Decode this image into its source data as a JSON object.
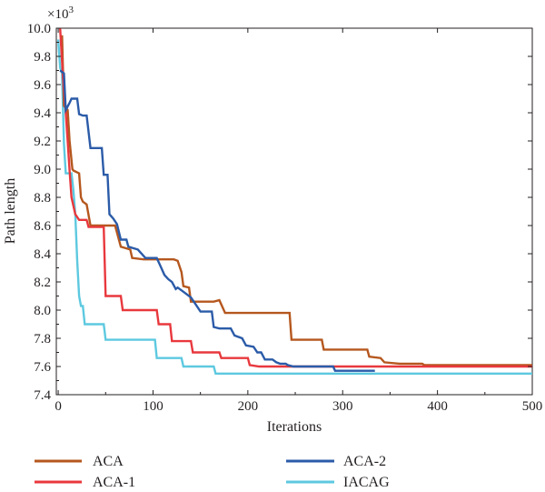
{
  "chart_data": {
    "type": "line",
    "xlabel": "Iterations",
    "ylabel": "Path length",
    "y_multiplier": "×10",
    "y_multiplier_exp": "3",
    "xlim": [
      -2,
      500
    ],
    "ylim": [
      7.4,
      10.0
    ],
    "xticks": [
      "0",
      "100",
      "200",
      "300",
      "400",
      "500"
    ],
    "yticks": [
      "7.4",
      "7.6",
      "7.8",
      "8.0",
      "8.2",
      "8.4",
      "8.6",
      "8.8",
      "9.0",
      "9.2",
      "9.4",
      "9.6",
      "9.8",
      "10.0"
    ],
    "xtick_values": [
      0,
      100,
      200,
      300,
      400,
      500
    ],
    "ytick_values": [
      7.4,
      7.6,
      7.8,
      8.0,
      8.2,
      8.4,
      8.6,
      8.8,
      9.0,
      9.2,
      9.4,
      9.6,
      9.8,
      10.0
    ],
    "legend_position": "bottom",
    "series": [
      {
        "name": "ACA",
        "color": "#b5571e",
        "points": [
          [
            4,
            9.95
          ],
          [
            6,
            9.45
          ],
          [
            10,
            9.42
          ],
          [
            12,
            9.2
          ],
          [
            15,
            9.0
          ],
          [
            16,
            8.99
          ],
          [
            22,
            8.97
          ],
          [
            24,
            8.8
          ],
          [
            26,
            8.77
          ],
          [
            30,
            8.75
          ],
          [
            34,
            8.6
          ],
          [
            60,
            8.6
          ],
          [
            66,
            8.45
          ],
          [
            76,
            8.43
          ],
          [
            78,
            8.37
          ],
          [
            90,
            8.36
          ],
          [
            122,
            8.36
          ],
          [
            126,
            8.35
          ],
          [
            130,
            8.27
          ],
          [
            132,
            8.17
          ],
          [
            138,
            8.16
          ],
          [
            140,
            8.06
          ],
          [
            164,
            8.06
          ],
          [
            170,
            8.07
          ],
          [
            176,
            7.98
          ],
          [
            244,
            7.98
          ],
          [
            246,
            7.79
          ],
          [
            278,
            7.79
          ],
          [
            280,
            7.72
          ],
          [
            326,
            7.72
          ],
          [
            328,
            7.67
          ],
          [
            340,
            7.66
          ],
          [
            344,
            7.63
          ],
          [
            360,
            7.62
          ],
          [
            384,
            7.62
          ],
          [
            386,
            7.61
          ],
          [
            500,
            7.61
          ]
        ]
      },
      {
        "name": "ACA-1",
        "color": "#e8383d",
        "points": [
          [
            2,
            10.0
          ],
          [
            5,
            9.65
          ],
          [
            8,
            9.4
          ],
          [
            10,
            9.2
          ],
          [
            12,
            8.99
          ],
          [
            14,
            8.8
          ],
          [
            18,
            8.68
          ],
          [
            22,
            8.64
          ],
          [
            30,
            8.64
          ],
          [
            32,
            8.59
          ],
          [
            48,
            8.59
          ],
          [
            50,
            8.1
          ],
          [
            66,
            8.1
          ],
          [
            68,
            8.0
          ],
          [
            104,
            8.0
          ],
          [
            106,
            7.9
          ],
          [
            118,
            7.9
          ],
          [
            120,
            7.78
          ],
          [
            140,
            7.78
          ],
          [
            142,
            7.7
          ],
          [
            170,
            7.7
          ],
          [
            172,
            7.66
          ],
          [
            200,
            7.66
          ],
          [
            202,
            7.61
          ],
          [
            212,
            7.6
          ],
          [
            500,
            7.6
          ]
        ]
      },
      {
        "name": "ACA-2",
        "color": "#2b5ba8",
        "points": [
          [
            2,
            9.7
          ],
          [
            6,
            9.68
          ],
          [
            8,
            9.42
          ],
          [
            12,
            9.47
          ],
          [
            14,
            9.5
          ],
          [
            20,
            9.5
          ],
          [
            22,
            9.39
          ],
          [
            26,
            9.38
          ],
          [
            30,
            9.38
          ],
          [
            34,
            9.15
          ],
          [
            46,
            9.15
          ],
          [
            48,
            8.96
          ],
          [
            52,
            8.96
          ],
          [
            54,
            8.68
          ],
          [
            58,
            8.65
          ],
          [
            62,
            8.61
          ],
          [
            66,
            8.5
          ],
          [
            72,
            8.5
          ],
          [
            74,
            8.45
          ],
          [
            84,
            8.43
          ],
          [
            92,
            8.37
          ],
          [
            104,
            8.37
          ],
          [
            108,
            8.31
          ],
          [
            112,
            8.25
          ],
          [
            116,
            8.22
          ],
          [
            120,
            8.2
          ],
          [
            124,
            8.15
          ],
          [
            126,
            8.16
          ],
          [
            132,
            8.13
          ],
          [
            140,
            8.09
          ],
          [
            144,
            8.05
          ],
          [
            150,
            7.99
          ],
          [
            162,
            7.99
          ],
          [
            164,
            7.88
          ],
          [
            170,
            7.87
          ],
          [
            182,
            7.87
          ],
          [
            186,
            7.82
          ],
          [
            194,
            7.8
          ],
          [
            198,
            7.75
          ],
          [
            206,
            7.74
          ],
          [
            210,
            7.7
          ],
          [
            214,
            7.7
          ],
          [
            218,
            7.65
          ],
          [
            226,
            7.65
          ],
          [
            230,
            7.63
          ],
          [
            234,
            7.62
          ],
          [
            240,
            7.62
          ],
          [
            242,
            7.61
          ],
          [
            248,
            7.6
          ],
          [
            290,
            7.6
          ],
          [
            292,
            7.57
          ],
          [
            334,
            7.57
          ]
        ]
      },
      {
        "name": "IACAG",
        "color": "#5dc9e0",
        "points": [
          [
            0,
            9.92
          ],
          [
            2,
            9.72
          ],
          [
            4,
            9.68
          ],
          [
            6,
            9.18
          ],
          [
            8,
            8.97
          ],
          [
            14,
            8.97
          ],
          [
            16,
            8.85
          ],
          [
            18,
            8.68
          ],
          [
            20,
            8.35
          ],
          [
            22,
            8.1
          ],
          [
            24,
            8.03
          ],
          [
            26,
            8.03
          ],
          [
            28,
            7.9
          ],
          [
            48,
            7.9
          ],
          [
            50,
            7.79
          ],
          [
            102,
            7.79
          ],
          [
            104,
            7.66
          ],
          [
            130,
            7.66
          ],
          [
            132,
            7.6
          ],
          [
            164,
            7.6
          ],
          [
            166,
            7.55
          ],
          [
            500,
            7.55
          ]
        ]
      }
    ]
  }
}
